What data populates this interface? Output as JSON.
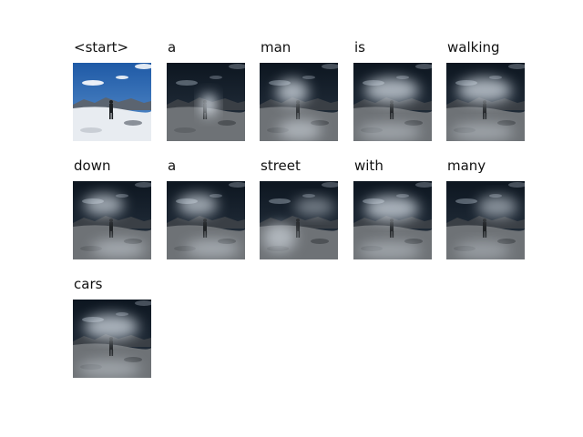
{
  "tokens": [
    {
      "word": "<start>",
      "mode": "original"
    },
    {
      "word": "a",
      "mode": "attention",
      "focus": "person"
    },
    {
      "word": "man",
      "mode": "attention",
      "focus": "sky-upper"
    },
    {
      "word": "is",
      "mode": "attention",
      "focus": "sky-wide"
    },
    {
      "word": "walking",
      "mode": "attention",
      "focus": "sky-wide"
    },
    {
      "word": "down",
      "mode": "attention",
      "focus": "sky-left"
    },
    {
      "word": "a",
      "mode": "attention",
      "focus": "sky-left"
    },
    {
      "word": "street",
      "mode": "attention",
      "focus": "ground"
    },
    {
      "word": "with",
      "mode": "attention",
      "focus": "sky-wide"
    },
    {
      "word": "many",
      "mode": "attention",
      "focus": "sky-right"
    },
    {
      "word": "cars",
      "mode": "attention",
      "focus": "sky-wide"
    }
  ]
}
